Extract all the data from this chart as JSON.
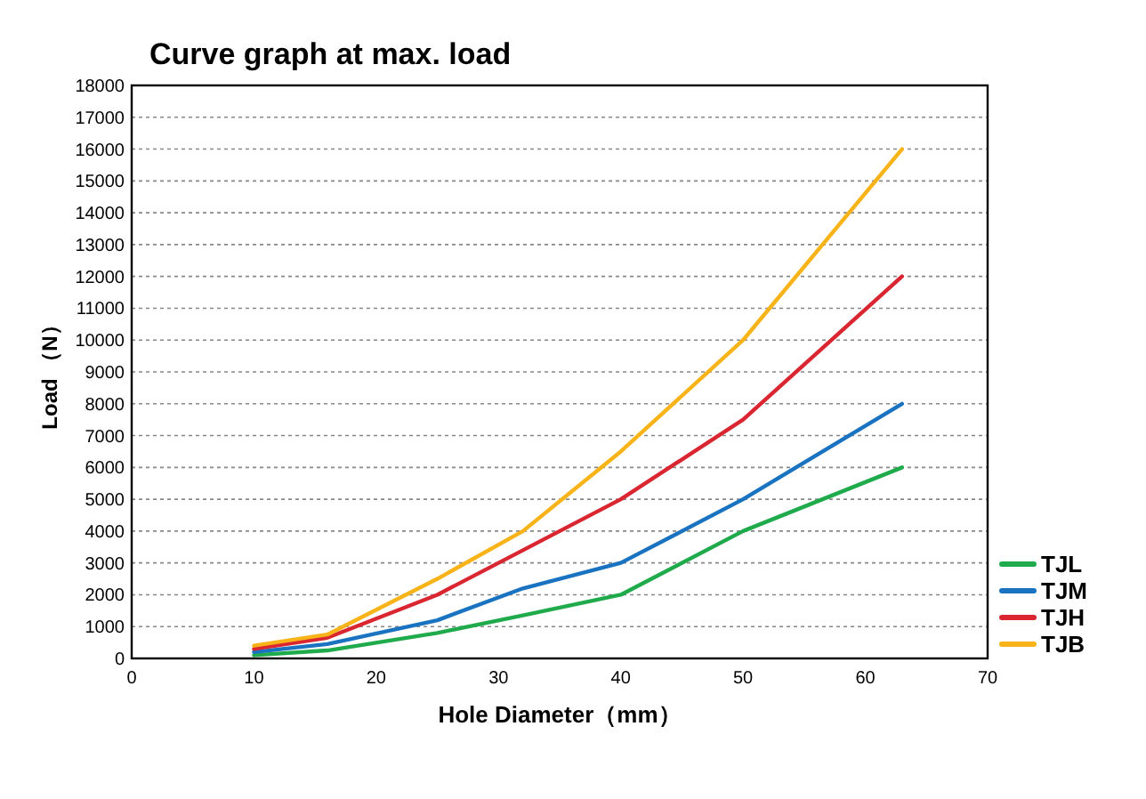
{
  "chart_data": {
    "type": "line",
    "title": "Curve graph at max. load",
    "xlabel": "Hole Diameter（mm）",
    "ylabel": "Load （N）",
    "xlim": [
      0,
      70
    ],
    "xticks": [
      0,
      10,
      20,
      30,
      40,
      50,
      60,
      70
    ],
    "ylim": [
      0,
      18000
    ],
    "yticks": [
      0,
      1000,
      2000,
      3000,
      4000,
      5000,
      6000,
      7000,
      8000,
      9000,
      10000,
      11000,
      12000,
      13000,
      14000,
      15000,
      16000,
      17000,
      18000
    ],
    "grid": "y",
    "legend": "bottom right",
    "line_style": "solid",
    "x": [
      10,
      16,
      25,
      32,
      40,
      50,
      63
    ],
    "series": [
      {
        "name": "TJL",
        "color": "#1faa4b",
        "values": [
          100,
          250,
          800,
          1350,
          2000,
          4000,
          6000
        ]
      },
      {
        "name": "TJM",
        "color": "#1a73c0",
        "values": [
          200,
          450,
          1200,
          2200,
          3000,
          5000,
          8000
        ]
      },
      {
        "name": "TJH",
        "color": "#d92630",
        "values": [
          300,
          650,
          2000,
          3400,
          5000,
          7500,
          12000
        ]
      },
      {
        "name": "TJB",
        "color": "#f7b318",
        "values": [
          400,
          750,
          2500,
          4000,
          6500,
          10000,
          16000
        ]
      }
    ]
  }
}
